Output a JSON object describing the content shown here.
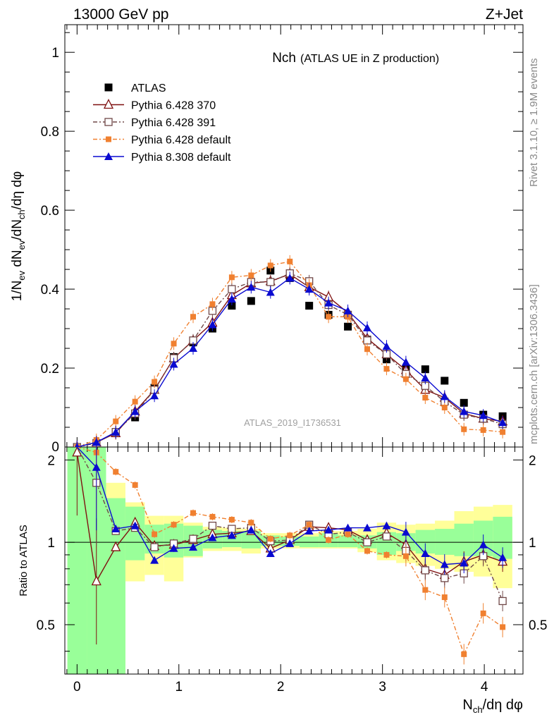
{
  "header": {
    "left": "13000 GeV pp",
    "right": "Z+Jet"
  },
  "side": {
    "rivet": "Rivet 3.1.10, ≥ 1.9M events",
    "mcplots": "mcplots.cern.ch [arXiv:1306.3436]"
  },
  "plot_title": {
    "main": "Nch",
    "sub": "(ATLAS UE in Z production)"
  },
  "watermark": "ATLAS_2019_I1736531",
  "axis_text": {
    "main_ylabel": "1/N_ev dN_ev/dN_ch/dη dφ",
    "ratio_ylabel": "Ratio to ATLAS",
    "xlabel": "N_ch/dη dφ"
  },
  "colors": {
    "data": "#000000",
    "p370": "#7f1010",
    "p391": "#704848",
    "p6def": "#f08030",
    "p8def": "#0a0ad0",
    "band_green": "#99ff99",
    "band_yellow": "#ffff99"
  },
  "chart_data": [
    {
      "type": "scatter",
      "panel": "main",
      "xlim": [
        -0.12,
        4.38
      ],
      "ylim": [
        0,
        1.07
      ],
      "x_ticks": [
        "0",
        "1",
        "2",
        "3",
        "4"
      ],
      "y_ticks": [
        "0",
        "0.2",
        "0.4",
        "0.6",
        "0.8",
        "1"
      ],
      "x": [
        0.0,
        0.19,
        0.38,
        0.57,
        0.76,
        0.95,
        1.14,
        1.33,
        1.52,
        1.71,
        1.9,
        2.09,
        2.28,
        2.47,
        2.66,
        2.85,
        3.04,
        3.23,
        3.42,
        3.61,
        3.8,
        3.99,
        4.18
      ],
      "series": [
        {
          "name": "ATLAS",
          "key": "data",
          "marker": "square-filled",
          "style": "none",
          "values": [
            0.0,
            0.005,
            0.038,
            0.075,
            0.15,
            0.228,
            0.265,
            0.3,
            0.358,
            0.37,
            0.447,
            0.428,
            0.358,
            0.335,
            0.305,
            0.272,
            0.222,
            0.197,
            0.197,
            0.168,
            0.112,
            0.082,
            0.078
          ]
        },
        {
          "name": "Pythia 6.428 370",
          "key": "p370",
          "marker": "triangle-open",
          "style": "solid",
          "values": [
            0.0,
            0.012,
            0.035,
            0.09,
            0.145,
            0.225,
            0.27,
            0.315,
            0.385,
            0.415,
            0.42,
            0.438,
            0.405,
            0.38,
            0.34,
            0.275,
            0.235,
            0.195,
            0.145,
            0.125,
            0.085,
            0.072,
            0.065
          ]
        },
        {
          "name": "Pythia 6.428 391",
          "key": "p391",
          "marker": "square-open",
          "style": "dashdot",
          "values": [
            0.0,
            0.01,
            0.038,
            0.085,
            0.145,
            0.225,
            0.27,
            0.345,
            0.4,
            0.418,
            0.418,
            0.44,
            0.42,
            0.36,
            0.335,
            0.27,
            0.235,
            0.185,
            0.155,
            0.115,
            0.082,
            0.072,
            0.058
          ]
        },
        {
          "name": "Pythia 6.428 default",
          "key": "p6def",
          "marker": "square-small",
          "style": "dashdot",
          "values": [
            0.0,
            0.018,
            0.065,
            0.115,
            0.165,
            0.262,
            0.33,
            0.362,
            0.43,
            0.435,
            0.46,
            0.47,
            0.41,
            0.33,
            0.33,
            0.248,
            0.198,
            0.172,
            0.125,
            0.1,
            0.045,
            0.043,
            0.038
          ]
        },
        {
          "name": "Pythia 8.308 default",
          "key": "p8def",
          "marker": "triangle-filled",
          "style": "solid",
          "values": [
            0.0,
            0.012,
            0.038,
            0.09,
            0.13,
            0.21,
            0.25,
            0.31,
            0.375,
            0.405,
            0.392,
            0.428,
            0.4,
            0.365,
            0.345,
            0.302,
            0.255,
            0.215,
            0.175,
            0.128,
            0.09,
            0.08,
            0.062
          ]
        }
      ]
    },
    {
      "type": "scatter",
      "panel": "ratio",
      "xlim": [
        -0.12,
        4.38
      ],
      "ylim": [
        0.33,
        2.23
      ],
      "y_ticks": [
        "0.5",
        "1",
        "2"
      ],
      "x": [
        0.0,
        0.19,
        0.38,
        0.57,
        0.76,
        0.95,
        1.14,
        1.33,
        1.52,
        1.71,
        1.9,
        2.09,
        2.28,
        2.47,
        2.66,
        2.85,
        3.04,
        3.23,
        3.42,
        3.61,
        3.8,
        3.99,
        4.18
      ],
      "bands": {
        "edges": [
          -0.095,
          0.095,
          0.285,
          0.475,
          0.665,
          0.855,
          1.045,
          1.235,
          1.425,
          1.615,
          1.805,
          1.995,
          2.185,
          2.375,
          2.565,
          2.755,
          2.945,
          3.135,
          3.325,
          3.515,
          3.705,
          3.895,
          4.085,
          4.275
        ],
        "green_lo": [
          0.33,
          0.33,
          0.33,
          0.86,
          0.91,
          0.88,
          0.89,
          0.95,
          0.96,
          0.95,
          0.97,
          0.97,
          0.96,
          0.96,
          0.96,
          0.95,
          0.9,
          0.93,
          0.91,
          0.9,
          0.89,
          0.89,
          0.87
        ],
        "green_hi": [
          2.23,
          2.23,
          1.45,
          1.35,
          1.16,
          1.17,
          1.15,
          1.11,
          1.1,
          1.1,
          1.06,
          1.05,
          1.05,
          1.08,
          1.06,
          1.06,
          1.09,
          1.08,
          1.11,
          1.12,
          1.17,
          1.2,
          1.24
        ],
        "yellow_lo": [
          0.33,
          0.33,
          0.33,
          0.72,
          0.76,
          0.72,
          0.88,
          0.93,
          0.93,
          0.91,
          0.95,
          0.95,
          0.95,
          0.95,
          0.95,
          0.92,
          0.86,
          0.84,
          0.82,
          0.8,
          0.78,
          0.75,
          0.68
        ],
        "yellow_hi": [
          2.23,
          2.23,
          1.65,
          1.4,
          1.25,
          1.25,
          1.18,
          1.14,
          1.13,
          1.12,
          1.08,
          1.08,
          1.08,
          1.1,
          1.1,
          1.12,
          1.18,
          1.16,
          1.17,
          1.2,
          1.3,
          1.35,
          1.37
        ]
      },
      "series": [
        {
          "name": "Pythia 6.428 370",
          "key": "p370",
          "values": [
            2.13,
            0.72,
            0.96,
            1.18,
            0.97,
            0.98,
            1.02,
            1.07,
            1.08,
            1.1,
            0.95,
            1.02,
            1.14,
            1.13,
            1.11,
            1.02,
            1.08,
            0.98,
            0.8,
            0.76,
            0.85,
            0.9,
            0.85
          ]
        },
        {
          "name": "Pythia 6.428 391",
          "key": "p391",
          "values": [
            2.23,
            1.65,
            1.1,
            1.13,
            0.96,
            0.99,
            1.03,
            1.15,
            1.12,
            1.13,
            1.01,
            1.02,
            1.16,
            1.07,
            1.09,
            1.0,
            1.05,
            0.93,
            0.79,
            0.74,
            0.77,
            0.89,
            0.61
          ]
        },
        {
          "name": "Pythia 6.428 default",
          "key": "p6def",
          "values": [
            2.23,
            2.13,
            1.81,
            1.62,
            1.07,
            1.16,
            1.28,
            1.24,
            1.21,
            1.18,
            1.03,
            1.06,
            1.16,
            1.02,
            1.07,
            0.93,
            0.9,
            0.89,
            0.67,
            0.63,
            0.39,
            0.55,
            0.49
          ]
        },
        {
          "name": "Pythia 8.308 default",
          "key": "p8def",
          "values": [
            2.23,
            1.88,
            1.12,
            1.15,
            0.86,
            0.95,
            0.96,
            1.04,
            1.06,
            1.11,
            0.91,
            0.99,
            1.1,
            1.11,
            1.13,
            1.13,
            1.15,
            1.09,
            0.91,
            0.83,
            0.84,
            0.98,
            0.88
          ]
        }
      ]
    }
  ]
}
